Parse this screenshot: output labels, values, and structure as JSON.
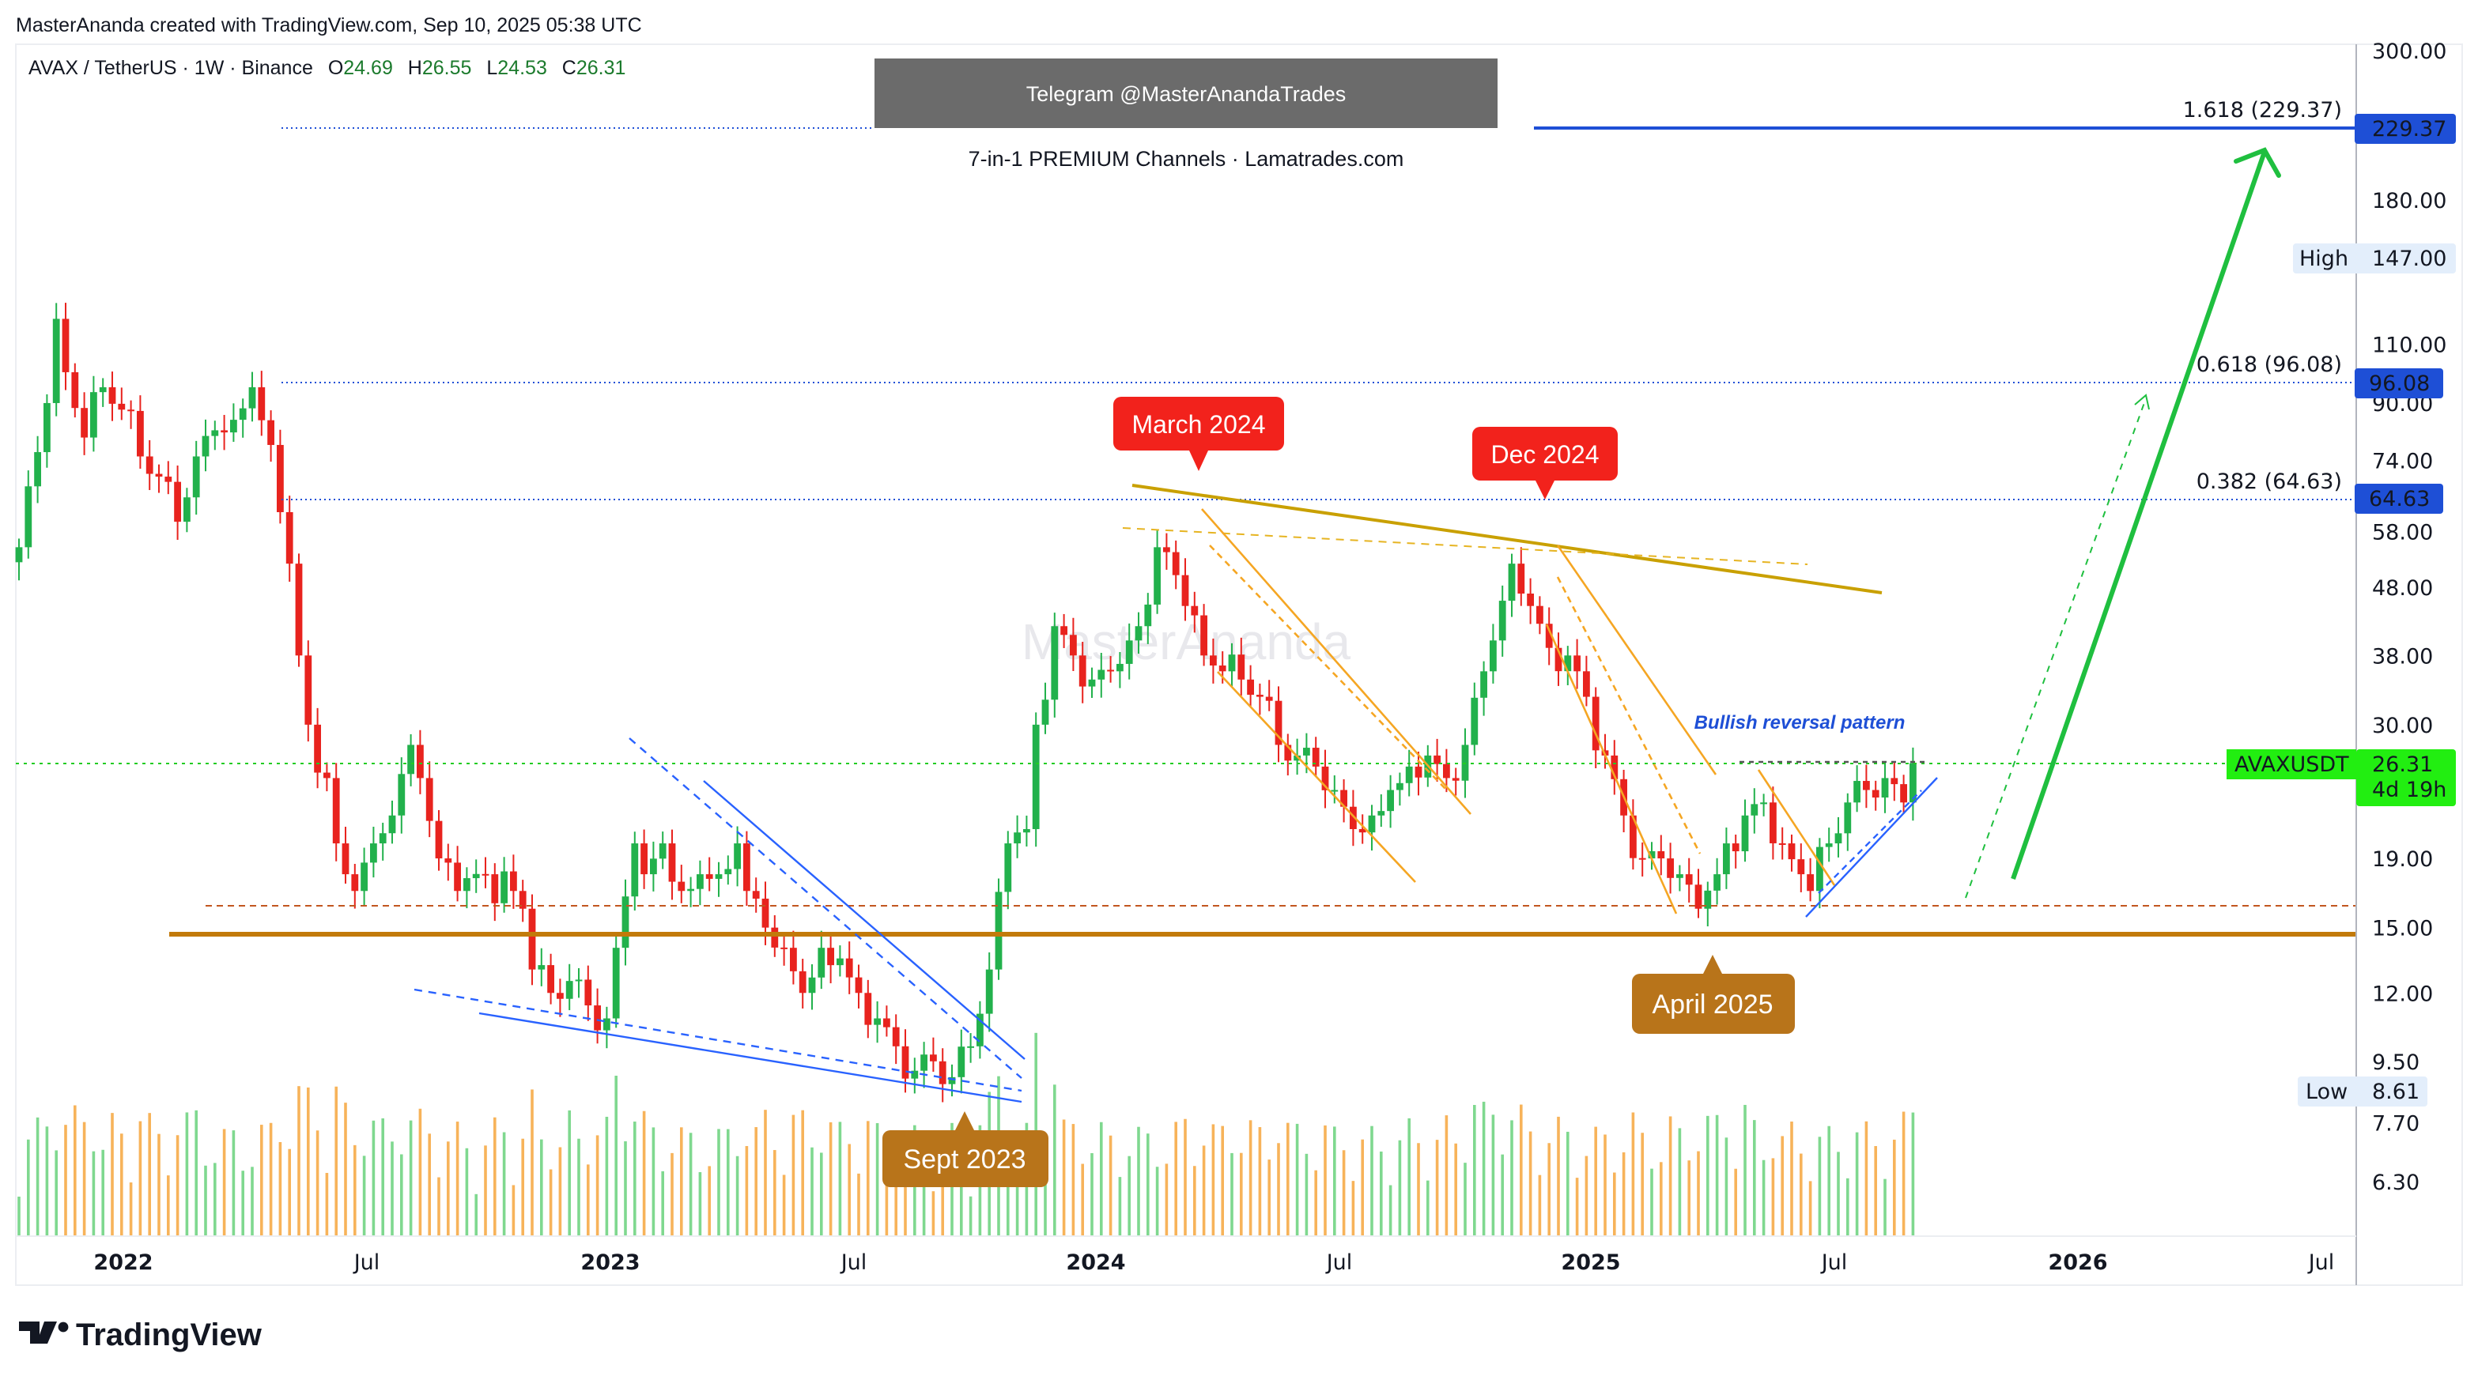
{
  "header": {
    "credit": "MasterAnanda created with TradingView.com, Sep 10, 2025 05:38 UTC",
    "symbol": "AVAX / TetherUS · 1W · Binance",
    "ohlc": {
      "o_label": "O",
      "o": "24.69",
      "h_label": "H",
      "h": "26.55",
      "l_label": "L",
      "l": "24.53",
      "c_label": "C",
      "c": "26.31"
    }
  },
  "banner": {
    "telegram": "Telegram @MasterAnandaTrades",
    "promo": "7-in-1 PREMIUM Channels · Lamatrades.com"
  },
  "watermark": "MasterAnanda",
  "brand": "TradingView",
  "colors": {
    "up": "#22b14c",
    "down": "#e8231e",
    "fib": "#1e4fd6",
    "price": "#22ee11",
    "support": "#c27a0a",
    "trend": "#c9a000",
    "channel": "#f5a623",
    "wedge": "#2962ff",
    "arrow": "#1fbf3f"
  },
  "price_axis": {
    "labels": [
      "300.00",
      "180.00",
      "110.00",
      "90.00",
      "74.00",
      "58.00",
      "48.00",
      "38.00",
      "30.00",
      "19.00",
      "15.00",
      "12.00",
      "9.50",
      "7.70",
      "6.30"
    ],
    "values": [
      300,
      180,
      110,
      90,
      74,
      58,
      48,
      38,
      30,
      19,
      15,
      12,
      9.5,
      7.7,
      6.3
    ]
  },
  "time_axis": [
    "2022",
    "Jul",
    "2023",
    "Jul",
    "2024",
    "Jul",
    "2025",
    "Jul",
    "2026",
    "Jul"
  ],
  "badges": {
    "fib_1618": "229.37",
    "fib_0618": "96.08",
    "fib_0382": "64.63",
    "high_label": "High",
    "high": "147.00",
    "low_label": "Low",
    "low": "8.61",
    "symbol": "AVAXUSDT",
    "last": "26.31",
    "countdown": "4d 19h"
  },
  "fib_levels": [
    {
      "label": "1.618 (229.37)",
      "value": 229.37
    },
    {
      "label": "0.618 (96.08)",
      "value": 96.08
    },
    {
      "label": "0.382 (64.63)",
      "value": 64.63
    }
  ],
  "annotations": {
    "march_2024": "March 2024",
    "dec_2024": "Dec 2024",
    "sept_2023": "Sept 2023",
    "april_2025": "April 2025",
    "pattern": "Bullish reversal pattern"
  },
  "chart_data": {
    "type": "candlestick",
    "title": "AVAX / TetherUS · 1W · Binance",
    "y_scale": "log",
    "ylim": [
      5.5,
      300
    ],
    "x_range": [
      "2021-11",
      "2026-08"
    ],
    "support_level": 15,
    "last_price": 26.31,
    "weekly_close_keypoints": [
      [
        0,
        55
      ],
      [
        3,
        90
      ],
      [
        4,
        120
      ],
      [
        5,
        100
      ],
      [
        7,
        80
      ],
      [
        9,
        95
      ],
      [
        11,
        88
      ],
      [
        13,
        75
      ],
      [
        15,
        70
      ],
      [
        17,
        60
      ],
      [
        19,
        75
      ],
      [
        21,
        82
      ],
      [
        23,
        85
      ],
      [
        25,
        95
      ],
      [
        27,
        78
      ],
      [
        28,
        62
      ],
      [
        29,
        52
      ],
      [
        30,
        38
      ],
      [
        31,
        30
      ],
      [
        33,
        25
      ],
      [
        34,
        20
      ],
      [
        35,
        18
      ],
      [
        36,
        17
      ],
      [
        38,
        20
      ],
      [
        40,
        22
      ],
      [
        42,
        28
      ],
      [
        43,
        25
      ],
      [
        45,
        19
      ],
      [
        47,
        17
      ],
      [
        50,
        18
      ],
      [
        53,
        17
      ],
      [
        54,
        16
      ],
      [
        55,
        13
      ],
      [
        57,
        12
      ],
      [
        59,
        12.5
      ],
      [
        61,
        11.5
      ],
      [
        63,
        11
      ],
      [
        64,
        14
      ],
      [
        66,
        20
      ],
      [
        67,
        18
      ],
      [
        69,
        20
      ],
      [
        71,
        17
      ],
      [
        73,
        18
      ],
      [
        75,
        18
      ],
      [
        77,
        20
      ],
      [
        78,
        17
      ],
      [
        80,
        15
      ],
      [
        82,
        14
      ],
      [
        84,
        12
      ],
      [
        86,
        14
      ],
      [
        88,
        13.5
      ],
      [
        90,
        12
      ],
      [
        92,
        11
      ],
      [
        94,
        10
      ],
      [
        96,
        9.2
      ],
      [
        98,
        9.5
      ],
      [
        100,
        9
      ],
      [
        102,
        10
      ],
      [
        104,
        13
      ],
      [
        106,
        20
      ],
      [
        108,
        21
      ],
      [
        109,
        30
      ],
      [
        111,
        42
      ],
      [
        113,
        38
      ],
      [
        115,
        35
      ],
      [
        117,
        36
      ],
      [
        119,
        40
      ],
      [
        120,
        42
      ],
      [
        122,
        55
      ],
      [
        124,
        50
      ],
      [
        125,
        45
      ],
      [
        127,
        38
      ],
      [
        129,
        36
      ],
      [
        131,
        35
      ],
      [
        133,
        33
      ],
      [
        135,
        28
      ],
      [
        137,
        27
      ],
      [
        139,
        26
      ],
      [
        141,
        24
      ],
      [
        143,
        21
      ],
      [
        145,
        22
      ],
      [
        147,
        24
      ],
      [
        149,
        26
      ],
      [
        151,
        27
      ],
      [
        153,
        25
      ],
      [
        155,
        28
      ],
      [
        157,
        36
      ],
      [
        158,
        40
      ],
      [
        160,
        52
      ],
      [
        162,
        45
      ],
      [
        164,
        39
      ],
      [
        166,
        38
      ],
      [
        168,
        33
      ],
      [
        170,
        27
      ],
      [
        172,
        22
      ],
      [
        174,
        19
      ],
      [
        176,
        19
      ],
      [
        178,
        18
      ],
      [
        180,
        16
      ],
      [
        182,
        18
      ],
      [
        183,
        20
      ],
      [
        185,
        22
      ],
      [
        187,
        23
      ],
      [
        189,
        20
      ],
      [
        191,
        18
      ],
      [
        192,
        17
      ],
      [
        194,
        20
      ],
      [
        196,
        23
      ],
      [
        198,
        24
      ],
      [
        200,
        25
      ],
      [
        202,
        23
      ],
      [
        203,
        26.31
      ]
    ]
  }
}
